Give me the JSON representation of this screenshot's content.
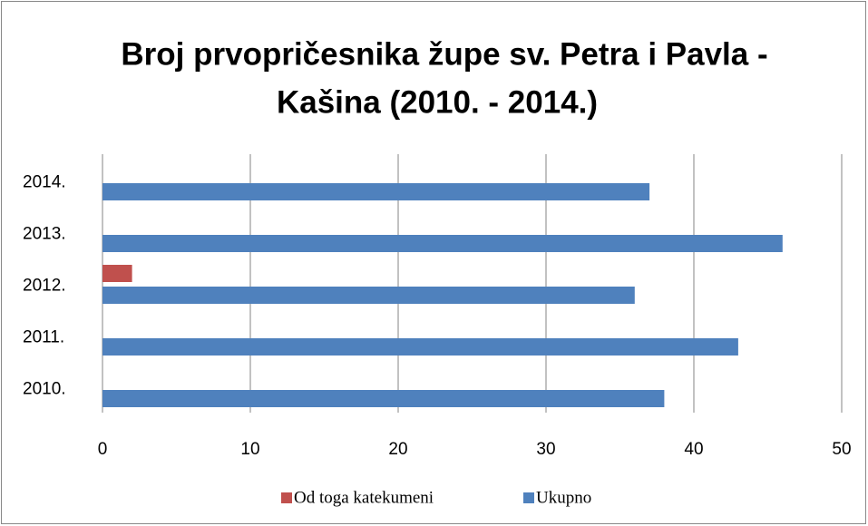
{
  "chart_data": {
    "type": "hbar",
    "title": [
      "Broj prvopričesnika župe sv. Petra i Pavla -",
      "Kašina (2010. - 2014.)"
    ],
    "categories": [
      "2010.",
      "2011.",
      "2012.",
      "2013.",
      "2014."
    ],
    "series": [
      {
        "name": "Od toga katekumeni",
        "color": "#c0504d",
        "values": [
          0,
          0,
          2,
          0,
          0
        ]
      },
      {
        "name": "Ukupno",
        "color": "#4f81bd",
        "values": [
          38,
          43,
          36,
          46,
          37
        ]
      }
    ],
    "xlim": [
      0,
      50
    ],
    "xticks": [
      0,
      10,
      20,
      30,
      40,
      50
    ],
    "grid": true,
    "legend": "bottom"
  }
}
